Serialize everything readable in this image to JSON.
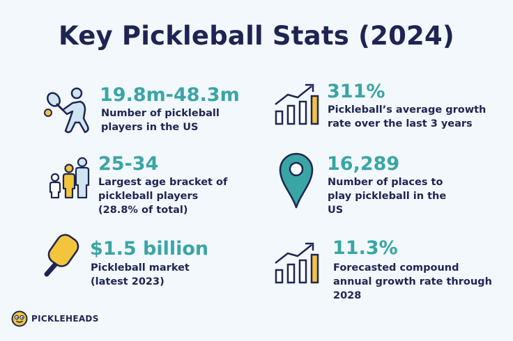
{
  "title": "Key Pickleball Stats (2024)",
  "stats": [
    {
      "value": "19.8m-48.3m",
      "desc": "Number of pickleball players in the US",
      "icon": "player-icon"
    },
    {
      "value": "311%",
      "desc": "Pickleball’s average growth rate over the last 3 years",
      "icon": "growth-chart-icon"
    },
    {
      "value": "25-34",
      "desc": "Largest age bracket of pickleball players (28.8% of total)",
      "icon": "people-icon"
    },
    {
      "value": "16,289",
      "desc": "Number of places to play pickleball in the US",
      "icon": "map-pin-icon"
    },
    {
      "value": "$1.5 billion",
      "desc": "Pickleball market (latest 2023)",
      "icon": "paddle-icon"
    },
    {
      "value": "11.3%",
      "desc": "Forecasted compound annual growth rate through 2028",
      "icon": "growth-chart-icon"
    }
  ],
  "brand": {
    "name": "PICKLEHEADS"
  },
  "colors": {
    "navy": "#1f2552",
    "teal": "#3aa5a5",
    "yellow": "#f2c53d",
    "light_blue": "#cfe6f2",
    "background": "#f2f8fc"
  }
}
